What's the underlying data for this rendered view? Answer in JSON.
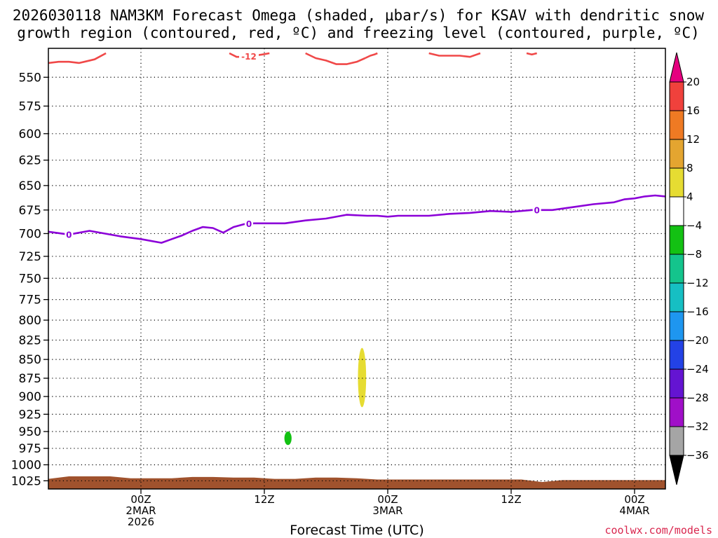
{
  "title": {
    "line1": "2026030118 NAM3KM Forecast Omega (shaded, μbar/s) for KSAV with dendritic snow",
    "line2": "growth region (contoured, red, ºC) and freezing level (contoured, purple, ºC)"
  },
  "credit": "coolwx.com/models",
  "chart_data": {
    "type": "heatmap",
    "xlabel": "Forecast Time (UTC)",
    "x_axis": {
      "unit": "hours since 2026-03-01 18Z",
      "range": [
        -3,
        57
      ],
      "ticks": [
        {
          "x": 6,
          "lines": [
            "00Z",
            "2MAR",
            "2026"
          ]
        },
        {
          "x": 18,
          "lines": [
            "12Z"
          ]
        },
        {
          "x": 30,
          "lines": [
            "00Z",
            "3MAR"
          ]
        },
        {
          "x": 42,
          "lines": [
            "12Z"
          ]
        },
        {
          "x": 54,
          "lines": [
            "00Z",
            "4MAR"
          ]
        }
      ]
    },
    "y_axis": {
      "label": "",
      "unit": "hPa",
      "scale": "log-pressure, inverted",
      "range": [
        1038,
        526
      ],
      "ticks": [
        550,
        575,
        600,
        625,
        650,
        675,
        700,
        725,
        750,
        775,
        800,
        825,
        850,
        875,
        900,
        925,
        950,
        975,
        1000,
        1025
      ]
    },
    "grid": true,
    "colorbar": {
      "unit": "μbar/s",
      "labels": [
        "20",
        "16",
        "12",
        "8",
        "4",
        "−4",
        "−8",
        "−12",
        "−16",
        "−20",
        "−24",
        "−28",
        "−32",
        "−36"
      ],
      "top_arrow_color": "#e5007f",
      "bottom_arrow_color": "#000000",
      "bins": [
        {
          "from": 16,
          "to": 20,
          "color": "#f0413c"
        },
        {
          "from": 12,
          "to": 16,
          "color": "#ef7a23"
        },
        {
          "from": 8,
          "to": 12,
          "color": "#e4a530"
        },
        {
          "from": 4,
          "to": 8,
          "color": "#e6dc32"
        },
        {
          "from": -4,
          "to": 4,
          "color": "#ffffff"
        },
        {
          "from": -8,
          "to": -4,
          "color": "#13c113"
        },
        {
          "from": -12,
          "to": -8,
          "color": "#14c48c"
        },
        {
          "from": -16,
          "to": -12,
          "color": "#16bfc3"
        },
        {
          "from": -20,
          "to": -16,
          "color": "#1e96f0"
        },
        {
          "from": -24,
          "to": -20,
          "color": "#2342e6"
        },
        {
          "from": -28,
          "to": -24,
          "color": "#6414d2"
        },
        {
          "from": -32,
          "to": -28,
          "color": "#a00fc8"
        },
        {
          "from": -36,
          "to": -32,
          "color": "#a5a5a5"
        }
      ]
    },
    "shaded_features": [
      {
        "kind": "omega",
        "bin": "4 to 8",
        "color": "#e6dc32",
        "x_center": 27.5,
        "x_halfwidth": 0.4,
        "p_top": 835,
        "p_bottom": 915
      },
      {
        "kind": "omega",
        "bin": "-8 to -4",
        "color": "#13c113",
        "x_center": 20.3,
        "x_halfwidth": 0.35,
        "p_top": 950,
        "p_bottom": 970
      }
    ],
    "surface_terrain": {
      "color": "#a0522d",
      "x": [
        -3,
        -1,
        1,
        3,
        5,
        7,
        9,
        11,
        13,
        15,
        17,
        19,
        21,
        23,
        25,
        27,
        29,
        31,
        33,
        35,
        37,
        39,
        41,
        43,
        45,
        47,
        49,
        51,
        53,
        55,
        57
      ],
      "p": [
        1022,
        1018,
        1018,
        1018,
        1021,
        1021,
        1021,
        1019,
        1019,
        1020,
        1020,
        1022,
        1022,
        1020,
        1020,
        1021,
        1023,
        1023,
        1023,
        1023,
        1023,
        1023,
        1023,
        1023,
        1027,
        1024,
        1024,
        1024,
        1024,
        1024,
        1024
      ]
    },
    "contours": [
      {
        "name": "freezing level",
        "color": "#8b00d8",
        "label": "0",
        "label_at_x": [
          -1,
          16.5,
          44.5
        ],
        "x": [
          -3,
          -1,
          1,
          2,
          4,
          6,
          8,
          9,
          10,
          11,
          12,
          13,
          14,
          15,
          16,
          17,
          18,
          20,
          22,
          24,
          26,
          28,
          29,
          30,
          31,
          32,
          34,
          36,
          38,
          40,
          42,
          44,
          46,
          48,
          50,
          52,
          53,
          54,
          55,
          56,
          57
        ],
        "p": [
          698,
          701,
          697,
          699,
          703,
          706,
          710,
          706,
          702,
          697,
          693,
          694,
          699,
          693,
          690,
          689,
          689,
          689,
          686,
          684,
          680,
          681,
          681,
          682,
          681,
          681,
          681,
          679,
          678,
          676,
          677,
          675,
          675,
          672,
          669,
          667,
          664,
          663,
          661,
          660,
          661
        ]
      },
      {
        "name": "dendritic snow growth region",
        "color": "#f04848",
        "label": "-12",
        "label_at_x": [
          16.5
        ],
        "segments": [
          {
            "x": [
              -3,
              -2,
              -1,
              0,
              0.5,
              1.5,
              2.6
            ],
            "p": [
              538,
              537,
              537,
              538,
              537,
              535,
              530
            ]
          },
          {
            "x": [
              14.6,
              15.3,
              16.2,
              17,
              17.8,
              18.5
            ],
            "p": [
              530,
              533,
              533,
              532,
              531,
              530
            ]
          },
          {
            "x": [
              22,
              23,
              24,
              25,
              26,
              27,
              27.8
            ],
            "p": [
              530,
              534,
              536,
              539,
              539,
              537,
              534
            ]
          },
          {
            "x": [
              27.8,
              28.3,
              28.7,
              29
            ],
            "p": [
              534,
              532,
              531,
              530
            ]
          },
          {
            "x": [
              34,
              35,
              36,
              37,
              38,
              39
            ],
            "p": [
              530,
              532,
              532,
              532,
              533,
              530
            ]
          },
          {
            "x": [
              43.5,
              44,
              44.5
            ],
            "p": [
              530,
              531,
              530
            ]
          }
        ]
      }
    ]
  }
}
